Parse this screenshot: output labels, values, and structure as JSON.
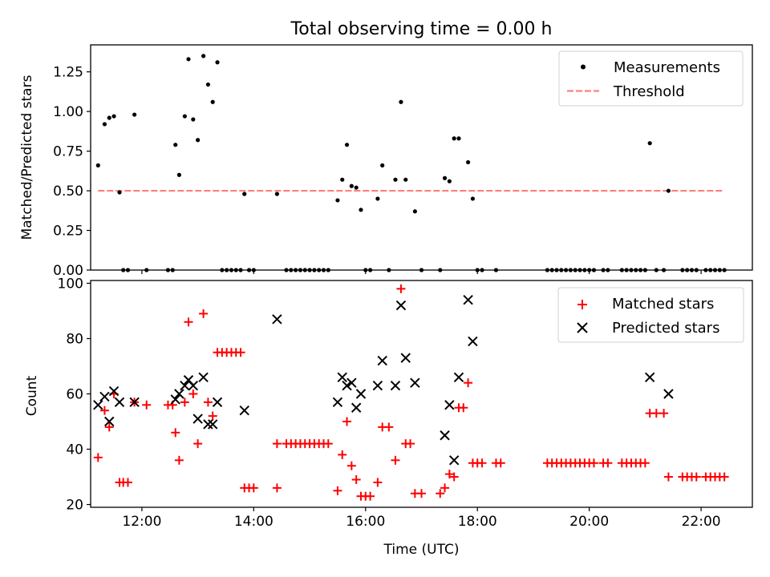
{
  "chart_data": [
    {
      "type": "scatter",
      "title": "Total observing time = 0.00 h",
      "ylabel": "Matched/Predicted stars",
      "xlabel": "",
      "xlim": [
        "11:05",
        "22:55"
      ],
      "ylim": [
        0,
        1.42
      ],
      "yticks": [
        "0.00",
        "0.25",
        "0.50",
        "0.75",
        "1.00",
        "1.25"
      ],
      "xticks": [
        "12:00",
        "14:00",
        "16:00",
        "18:00",
        "20:00",
        "22:00"
      ],
      "legend": {
        "position": "top-right",
        "entries": [
          "Measurements",
          "Threshold"
        ]
      },
      "series": [
        {
          "name": "Measurements",
          "color": "#000000",
          "marker": "dot",
          "points": [
            [
              "11:13",
              0.66
            ],
            [
              "11:20",
              0.92
            ],
            [
              "11:25",
              0.96
            ],
            [
              "11:30",
              0.97
            ],
            [
              "11:36",
              0.49
            ],
            [
              "11:40",
              0
            ],
            [
              "11:45",
              0
            ],
            [
              "11:52",
              0.98
            ],
            [
              "12:05",
              0
            ],
            [
              "12:28",
              0
            ],
            [
              "12:33",
              0
            ],
            [
              "12:36",
              0.79
            ],
            [
              "12:40",
              0.6
            ],
            [
              "12:46",
              0.97
            ],
            [
              "12:50",
              1.33
            ],
            [
              "12:55",
              0.95
            ],
            [
              "13:00",
              0.82
            ],
            [
              "13:06",
              1.35
            ],
            [
              "13:11",
              1.17
            ],
            [
              "13:16",
              1.06
            ],
            [
              "13:21",
              1.31
            ],
            [
              "13:26",
              0
            ],
            [
              "13:31",
              0
            ],
            [
              "13:36",
              0
            ],
            [
              "13:41",
              0
            ],
            [
              "13:46",
              0
            ],
            [
              "13:50",
              0.48
            ],
            [
              "13:55",
              0
            ],
            [
              "14:00",
              0
            ],
            [
              "14:25",
              0.48
            ],
            [
              "14:35",
              0
            ],
            [
              "14:40",
              0
            ],
            [
              "14:45",
              0
            ],
            [
              "14:50",
              0
            ],
            [
              "14:55",
              0
            ],
            [
              "15:00",
              0
            ],
            [
              "15:05",
              0
            ],
            [
              "15:10",
              0
            ],
            [
              "15:15",
              0
            ],
            [
              "15:20",
              0
            ],
            [
              "15:30",
              0.44
            ],
            [
              "15:35",
              0.57
            ],
            [
              "15:40",
              0.79
            ],
            [
              "15:45",
              0.53
            ],
            [
              "15:50",
              0.52
            ],
            [
              "15:55",
              0.38
            ],
            [
              "16:00",
              0
            ],
            [
              "16:05",
              0
            ],
            [
              "16:13",
              0.45
            ],
            [
              "16:18",
              0.66
            ],
            [
              "16:25",
              0
            ],
            [
              "16:32",
              0.57
            ],
            [
              "16:38",
              1.06
            ],
            [
              "16:43",
              0.57
            ],
            [
              "16:53",
              0.37
            ],
            [
              "17:00",
              0
            ],
            [
              "17:20",
              0
            ],
            [
              "17:25",
              0.58
            ],
            [
              "17:30",
              0.56
            ],
            [
              "17:35",
              0.83
            ],
            [
              "17:40",
              0.83
            ],
            [
              "17:50",
              0.68
            ],
            [
              "17:55",
              0.45
            ],
            [
              "18:00",
              0
            ],
            [
              "18:05",
              0
            ],
            [
              "18:20",
              0
            ],
            [
              "19:15",
              0
            ],
            [
              "19:20",
              0
            ],
            [
              "19:25",
              0
            ],
            [
              "19:30",
              0
            ],
            [
              "19:35",
              0
            ],
            [
              "19:40",
              0
            ],
            [
              "19:45",
              0
            ],
            [
              "19:50",
              0
            ],
            [
              "19:55",
              0
            ],
            [
              "20:00",
              0
            ],
            [
              "20:05",
              0
            ],
            [
              "20:15",
              0
            ],
            [
              "20:20",
              0
            ],
            [
              "20:35",
              0
            ],
            [
              "20:40",
              0
            ],
            [
              "20:45",
              0
            ],
            [
              "20:50",
              0
            ],
            [
              "20:55",
              0
            ],
            [
              "21:00",
              0
            ],
            [
              "21:05",
              0.8
            ],
            [
              "21:12",
              0
            ],
            [
              "21:20",
              0
            ],
            [
              "21:25",
              0.5
            ],
            [
              "21:40",
              0
            ],
            [
              "21:45",
              0
            ],
            [
              "21:50",
              0
            ],
            [
              "21:55",
              0
            ],
            [
              "22:05",
              0
            ],
            [
              "22:10",
              0
            ],
            [
              "22:15",
              0
            ],
            [
              "22:20",
              0
            ],
            [
              "22:25",
              0
            ]
          ]
        },
        {
          "name": "Threshold",
          "color": "#ff7f7f",
          "style": "dashed",
          "points": [
            [
              "11:13",
              0.5
            ],
            [
              "22:25",
              0.5
            ]
          ]
        }
      ]
    },
    {
      "type": "scatter",
      "title": "",
      "ylabel": "Count",
      "xlabel": "Time (UTC)",
      "xlim": [
        "11:05",
        "22:55"
      ],
      "ylim": [
        19,
        101
      ],
      "yticks": [
        "20",
        "40",
        "60",
        "80",
        "100"
      ],
      "xticks": [
        "12:00",
        "14:00",
        "16:00",
        "18:00",
        "20:00",
        "22:00"
      ],
      "legend": {
        "position": "top-right",
        "entries": [
          "Matched stars",
          "Predicted stars"
        ]
      },
      "series": [
        {
          "name": "Matched stars",
          "color": "#ff0000",
          "marker": "plus",
          "points": [
            [
              "11:13",
              37
            ],
            [
              "11:20",
              54
            ],
            [
              "11:25",
              48
            ],
            [
              "11:30",
              60
            ],
            [
              "11:36",
              28
            ],
            [
              "11:40",
              28
            ],
            [
              "11:45",
              28
            ],
            [
              "11:52",
              57
            ],
            [
              "12:05",
              56
            ],
            [
              "12:28",
              56
            ],
            [
              "12:33",
              56
            ],
            [
              "12:36",
              46
            ],
            [
              "12:40",
              36
            ],
            [
              "12:46",
              57
            ],
            [
              "12:50",
              86
            ],
            [
              "12:55",
              60
            ],
            [
              "13:00",
              42
            ],
            [
              "13:06",
              89
            ],
            [
              "13:11",
              57
            ],
            [
              "13:16",
              52
            ],
            [
              "13:21",
              75
            ],
            [
              "13:26",
              75
            ],
            [
              "13:31",
              75
            ],
            [
              "13:36",
              75
            ],
            [
              "13:41",
              75
            ],
            [
              "13:46",
              75
            ],
            [
              "13:50",
              26
            ],
            [
              "13:55",
              26
            ],
            [
              "14:00",
              26
            ],
            [
              "14:25",
              26
            ],
            [
              "14:25",
              42
            ],
            [
              "14:35",
              42
            ],
            [
              "14:40",
              42
            ],
            [
              "14:45",
              42
            ],
            [
              "14:50",
              42
            ],
            [
              "14:55",
              42
            ],
            [
              "15:00",
              42
            ],
            [
              "15:05",
              42
            ],
            [
              "15:10",
              42
            ],
            [
              "15:15",
              42
            ],
            [
              "15:20",
              42
            ],
            [
              "15:30",
              25
            ],
            [
              "15:35",
              38
            ],
            [
              "15:40",
              50
            ],
            [
              "15:45",
              34
            ],
            [
              "15:50",
              29
            ],
            [
              "15:55",
              23
            ],
            [
              "16:00",
              23
            ],
            [
              "16:05",
              23
            ],
            [
              "16:13",
              28
            ],
            [
              "16:18",
              48
            ],
            [
              "16:25",
              48
            ],
            [
              "16:32",
              36
            ],
            [
              "16:38",
              98
            ],
            [
              "16:43",
              42
            ],
            [
              "16:48",
              42
            ],
            [
              "16:53",
              24
            ],
            [
              "17:00",
              24
            ],
            [
              "17:20",
              24
            ],
            [
              "17:25",
              26
            ],
            [
              "17:30",
              31
            ],
            [
              "17:35",
              30
            ],
            [
              "17:40",
              55
            ],
            [
              "17:45",
              55
            ],
            [
              "17:50",
              64
            ],
            [
              "17:55",
              35
            ],
            [
              "18:00",
              35
            ],
            [
              "18:05",
              35
            ],
            [
              "18:20",
              35
            ],
            [
              "18:25",
              35
            ],
            [
              "19:15",
              35
            ],
            [
              "19:20",
              35
            ],
            [
              "19:25",
              35
            ],
            [
              "19:30",
              35
            ],
            [
              "19:35",
              35
            ],
            [
              "19:40",
              35
            ],
            [
              "19:45",
              35
            ],
            [
              "19:50",
              35
            ],
            [
              "19:55",
              35
            ],
            [
              "20:00",
              35
            ],
            [
              "20:05",
              35
            ],
            [
              "20:15",
              35
            ],
            [
              "20:20",
              35
            ],
            [
              "20:35",
              35
            ],
            [
              "20:40",
              35
            ],
            [
              "20:45",
              35
            ],
            [
              "20:50",
              35
            ],
            [
              "20:55",
              35
            ],
            [
              "21:00",
              35
            ],
            [
              "21:05",
              53
            ],
            [
              "21:12",
              53
            ],
            [
              "21:20",
              53
            ],
            [
              "21:25",
              30
            ],
            [
              "21:40",
              30
            ],
            [
              "21:45",
              30
            ],
            [
              "21:50",
              30
            ],
            [
              "21:55",
              30
            ],
            [
              "22:05",
              30
            ],
            [
              "22:10",
              30
            ],
            [
              "22:15",
              30
            ],
            [
              "22:20",
              30
            ],
            [
              "22:25",
              30
            ]
          ]
        },
        {
          "name": "Predicted stars",
          "color": "#000000",
          "marker": "x",
          "points": [
            [
              "11:13",
              56
            ],
            [
              "11:20",
              59
            ],
            [
              "11:25",
              50
            ],
            [
              "11:30",
              61
            ],
            [
              "11:36",
              57
            ],
            [
              "11:52",
              57
            ],
            [
              "12:36",
              58
            ],
            [
              "12:40",
              60
            ],
            [
              "12:46",
              63
            ],
            [
              "12:50",
              65
            ],
            [
              "12:55",
              63
            ],
            [
              "13:00",
              51
            ],
            [
              "13:06",
              66
            ],
            [
              "13:11",
              49
            ],
            [
              "13:16",
              49
            ],
            [
              "13:21",
              57
            ],
            [
              "13:50",
              54
            ],
            [
              "14:25",
              87
            ],
            [
              "15:30",
              57
            ],
            [
              "15:35",
              66
            ],
            [
              "15:40",
              63
            ],
            [
              "15:45",
              64
            ],
            [
              "15:50",
              55
            ],
            [
              "15:55",
              60
            ],
            [
              "16:13",
              63
            ],
            [
              "16:18",
              72
            ],
            [
              "16:32",
              63
            ],
            [
              "16:38",
              92
            ],
            [
              "16:43",
              73
            ],
            [
              "16:53",
              64
            ],
            [
              "17:25",
              45
            ],
            [
              "17:30",
              56
            ],
            [
              "17:35",
              36
            ],
            [
              "17:40",
              66
            ],
            [
              "17:50",
              94
            ],
            [
              "17:55",
              79
            ],
            [
              "21:05",
              66
            ],
            [
              "21:25",
              60
            ]
          ]
        }
      ]
    }
  ]
}
